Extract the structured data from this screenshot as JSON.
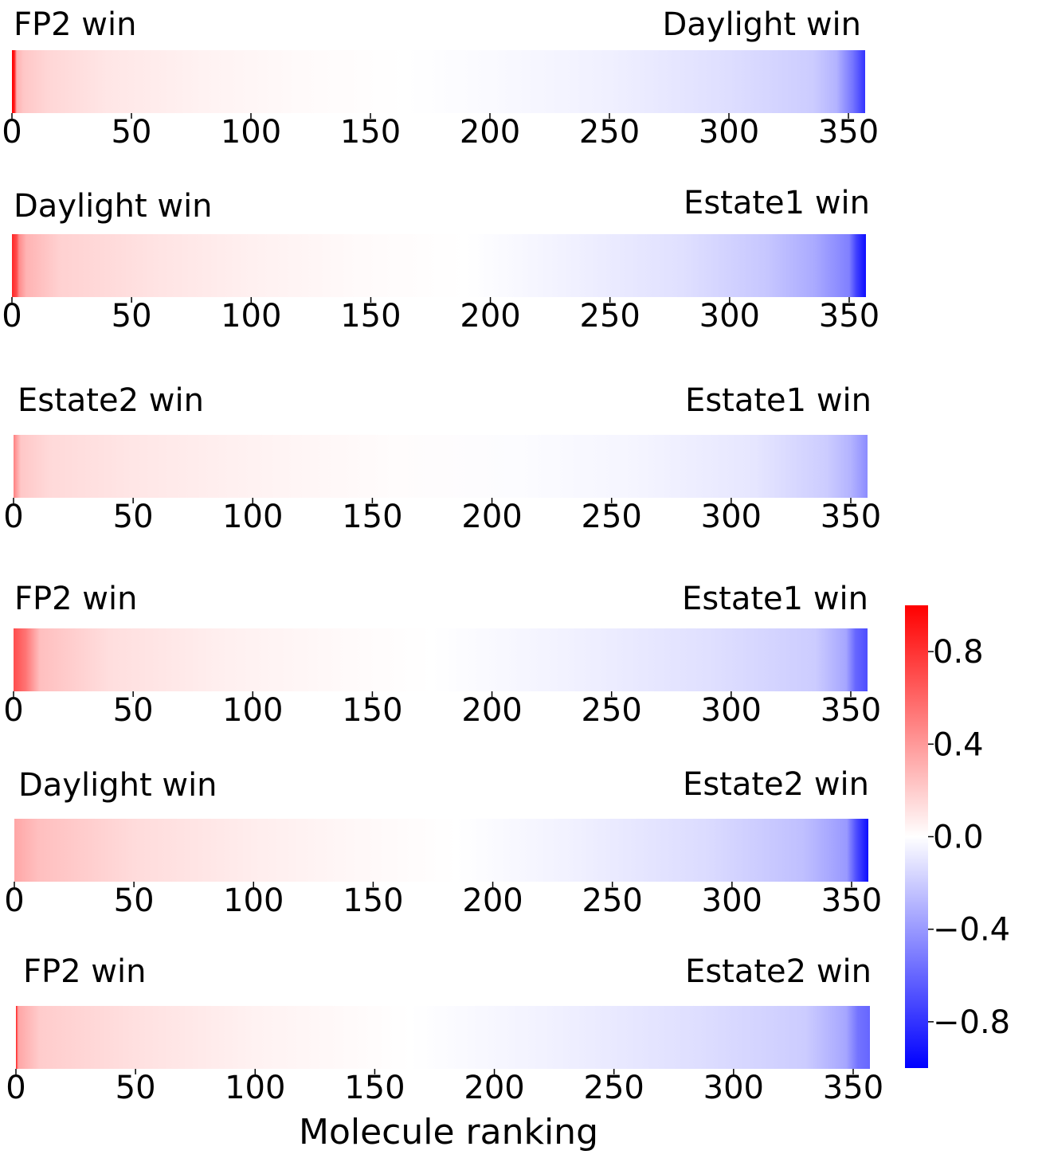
{
  "chart_data": {
    "type": "heatmap",
    "xlabel": "Molecule ranking",
    "x_ticks": [
      0,
      50,
      100,
      150,
      200,
      250,
      300,
      350
    ],
    "x_range": [
      0,
      357
    ],
    "colormap": "bwr",
    "color_range": [
      -1,
      1
    ],
    "colorbar": {
      "ticks": [
        "0.8",
        "0.4",
        "0.0",
        "−0.4",
        "−0.8"
      ],
      "tick_values": [
        0.8,
        0.4,
        0.0,
        -0.4,
        -0.8
      ]
    },
    "strips": [
      {
        "left_label": "FP2 win",
        "right_label": "Daylight win",
        "profile": [
          [
            0,
            1.0
          ],
          [
            1,
            0.9
          ],
          [
            2,
            0.3
          ],
          [
            5,
            0.22
          ],
          [
            15,
            0.16
          ],
          [
            40,
            0.1
          ],
          [
            80,
            0.05
          ],
          [
            120,
            0.02
          ],
          [
            165,
            0.0
          ],
          [
            200,
            -0.02
          ],
          [
            250,
            -0.06
          ],
          [
            300,
            -0.13
          ],
          [
            335,
            -0.2
          ],
          [
            345,
            -0.3
          ],
          [
            352,
            -0.55
          ],
          [
            357,
            -0.8
          ]
        ]
      },
      {
        "left_label": "Daylight win",
        "right_label": "Estate1 win",
        "profile": [
          [
            0,
            0.85
          ],
          [
            2,
            0.7
          ],
          [
            3,
            0.45
          ],
          [
            6,
            0.3
          ],
          [
            20,
            0.18
          ],
          [
            60,
            0.11
          ],
          [
            100,
            0.06
          ],
          [
            145,
            0.02
          ],
          [
            190,
            0.0
          ],
          [
            230,
            -0.05
          ],
          [
            280,
            -0.12
          ],
          [
            315,
            -0.22
          ],
          [
            335,
            -0.33
          ],
          [
            350,
            -0.5
          ],
          [
            353,
            -0.75
          ],
          [
            357,
            -0.95
          ]
        ]
      },
      {
        "left_label": "Estate2 win",
        "right_label": "Estate1 win",
        "profile": [
          [
            0,
            0.5
          ],
          [
            3,
            0.22
          ],
          [
            15,
            0.15
          ],
          [
            50,
            0.1
          ],
          [
            100,
            0.05
          ],
          [
            160,
            0.01
          ],
          [
            210,
            -0.01
          ],
          [
            260,
            -0.04
          ],
          [
            310,
            -0.1
          ],
          [
            340,
            -0.2
          ],
          [
            350,
            -0.3
          ],
          [
            357,
            -0.45
          ]
        ]
      },
      {
        "left_label": "FP2 win",
        "right_label": "Estate1 win",
        "profile": [
          [
            0,
            0.7
          ],
          [
            5,
            0.55
          ],
          [
            8,
            0.4
          ],
          [
            11,
            0.25
          ],
          [
            40,
            0.13
          ],
          [
            90,
            0.06
          ],
          [
            140,
            0.02
          ],
          [
            175,
            0.0
          ],
          [
            230,
            -0.05
          ],
          [
            290,
            -0.12
          ],
          [
            335,
            -0.2
          ],
          [
            348,
            -0.35
          ],
          [
            352,
            -0.6
          ],
          [
            357,
            -0.7
          ]
        ]
      },
      {
        "left_label": "Daylight win",
        "right_label": "Estate2 win",
        "profile": [
          [
            0,
            0.35
          ],
          [
            10,
            0.25
          ],
          [
            50,
            0.14
          ],
          [
            100,
            0.07
          ],
          [
            140,
            0.03
          ],
          [
            185,
            0.0
          ],
          [
            230,
            -0.05
          ],
          [
            290,
            -0.14
          ],
          [
            330,
            -0.25
          ],
          [
            348,
            -0.4
          ],
          [
            352,
            -0.7
          ],
          [
            357,
            -0.95
          ]
        ]
      },
      {
        "left_label": "FP2 win",
        "right_label": "Estate2 win",
        "profile": [
          [
            0,
            0.9
          ],
          [
            1,
            0.35
          ],
          [
            10,
            0.2
          ],
          [
            50,
            0.12
          ],
          [
            100,
            0.05
          ],
          [
            140,
            0.02
          ],
          [
            165,
            0.0
          ],
          [
            220,
            -0.05
          ],
          [
            280,
            -0.12
          ],
          [
            330,
            -0.2
          ],
          [
            347,
            -0.35
          ],
          [
            352,
            -0.55
          ],
          [
            357,
            -0.6
          ]
        ]
      }
    ]
  }
}
